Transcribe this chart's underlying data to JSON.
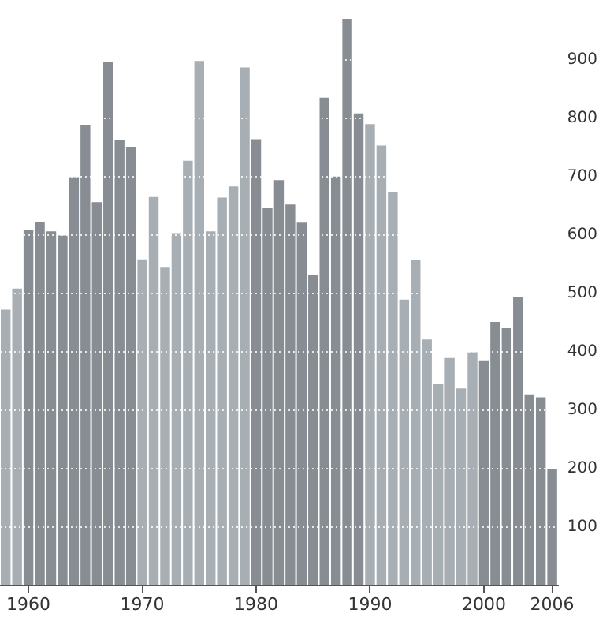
{
  "chart_data": {
    "type": "bar",
    "categories": [
      null,
      null,
      "1960",
      null,
      null,
      null,
      null,
      null,
      null,
      null,
      null,
      null,
      "1970",
      null,
      null,
      null,
      null,
      null,
      null,
      null,
      null,
      null,
      "1980",
      null,
      null,
      null,
      null,
      null,
      null,
      null,
      null,
      null,
      "1990",
      null,
      null,
      null,
      null,
      null,
      null,
      null,
      null,
      null,
      "2000",
      null,
      null,
      null,
      null,
      null,
      "2006"
    ],
    "values": [
      472,
      508,
      608,
      622,
      606,
      599,
      699,
      788,
      656,
      896,
      763,
      751,
      558,
      665,
      544,
      603,
      727,
      898,
      606,
      664,
      683,
      887,
      764,
      647,
      694,
      652,
      621,
      532,
      835,
      700,
      970,
      808,
      790,
      753,
      674,
      489,
      557,
      421,
      344,
      389,
      337,
      399,
      385,
      451,
      440,
      494,
      327,
      322,
      199
    ],
    "colors": [
      "#a7aeb4",
      "#a7aeb4",
      "#878d93",
      "#878d93",
      "#878d93",
      "#878d93",
      "#878d93",
      "#878d93",
      "#878d93",
      "#878d93",
      "#878d93",
      "#878d93",
      "#a7aeb4",
      "#a7aeb4",
      "#a7aeb4",
      "#a7aeb4",
      "#a7aeb4",
      "#a7aeb4",
      "#a7aeb4",
      "#a7aeb4",
      "#a7aeb4",
      "#a7aeb4",
      "#878d93",
      "#878d93",
      "#878d93",
      "#878d93",
      "#878d93",
      "#878d93",
      "#878d93",
      "#878d93",
      "#878d93",
      "#878d93",
      "#a7aeb4",
      "#a7aeb4",
      "#a7aeb4",
      "#a7aeb4",
      "#a7aeb4",
      "#a7aeb4",
      "#a7aeb4",
      "#a7aeb4",
      "#a7aeb4",
      "#a7aeb4",
      "#878d93",
      "#878d93",
      "#878d93",
      "#878d93",
      "#878d93",
      "#878d93",
      "#878d93"
    ],
    "ylim": [
      0,
      970
    ],
    "yticks": [
      100,
      200,
      300,
      400,
      500,
      600,
      700,
      800,
      900
    ],
    "grid": "y"
  }
}
